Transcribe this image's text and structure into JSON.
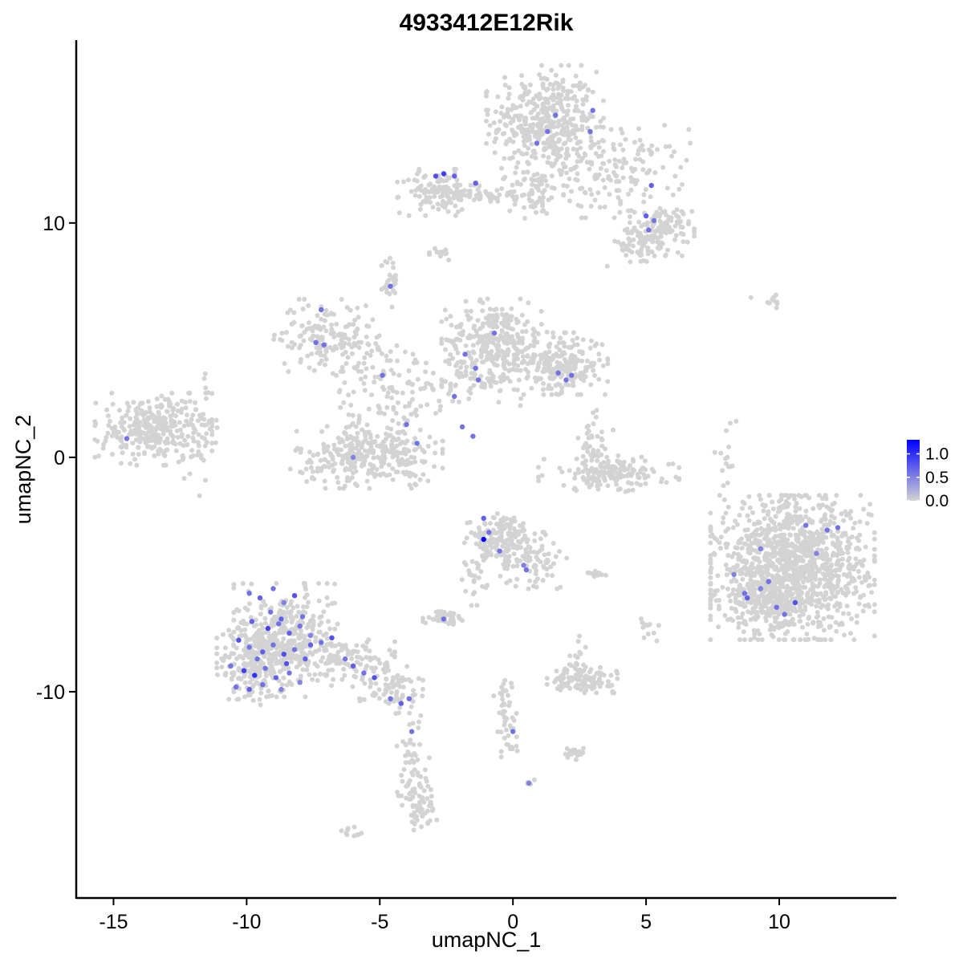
{
  "chart_data": {
    "type": "scatter",
    "title": "4933412E12Rik",
    "xlabel": "umapNC_1",
    "ylabel": "umapNC_2",
    "xlim": [
      -16.4,
      14.4
    ],
    "ylim": [
      -18.8,
      17.8
    ],
    "x_ticks": [
      -15,
      -10,
      -5,
      0,
      5,
      10
    ],
    "x_tick_labels": [
      "-15",
      "-10",
      "-5",
      "0",
      "5",
      "10"
    ],
    "y_ticks": [
      -10,
      0,
      10
    ],
    "y_tick_labels": [
      "-10",
      "0",
      "10"
    ],
    "grid": false,
    "legend_position": "right",
    "legend": {
      "low_color": "#d3d3d3",
      "high_color": "#0000ff",
      "range": [
        0,
        1.3
      ],
      "ticks": [
        0.0,
        0.5,
        1.0
      ],
      "tick_labels": [
        "0.0",
        "0.5",
        "1.0"
      ]
    },
    "clusters": [
      {
        "cx": 1.2,
        "cy": 14.3,
        "sx": 1.0,
        "sy": 1.1,
        "n": 420
      },
      {
        "cx": 3.8,
        "cy": 12.2,
        "sx": 1.3,
        "sy": 0.9,
        "n": 170
      },
      {
        "cx": 5.6,
        "cy": 9.7,
        "sx": 0.55,
        "sy": 0.5,
        "n": 110
      },
      {
        "cx": 4.6,
        "cy": 9.0,
        "sx": 0.6,
        "sy": 0.4,
        "n": 50
      },
      {
        "cx": -2.8,
        "cy": 11.3,
        "sx": 0.7,
        "sy": 0.45,
        "n": 120
      },
      {
        "cx": -0.7,
        "cy": 11.2,
        "sx": 0.6,
        "sy": 0.2,
        "n": 40
      },
      {
        "cx": 0.8,
        "cy": 11.3,
        "sx": 0.5,
        "sy": 0.5,
        "n": 60
      },
      {
        "cx": -2.7,
        "cy": 8.7,
        "sx": 0.2,
        "sy": 0.15,
        "n": 15
      },
      {
        "cx": -4.6,
        "cy": 7.5,
        "sx": 0.15,
        "sy": 0.6,
        "n": 25
      },
      {
        "cx": -0.7,
        "cy": 5.0,
        "sx": 0.9,
        "sy": 0.8,
        "n": 280
      },
      {
        "cx": 1.8,
        "cy": 4.0,
        "sx": 0.8,
        "sy": 0.6,
        "n": 230
      },
      {
        "cx": -1.5,
        "cy": 3.2,
        "sx": 1.2,
        "sy": 0.6,
        "n": 80
      },
      {
        "cx": -7.0,
        "cy": 5.2,
        "sx": 0.9,
        "sy": 0.7,
        "n": 150
      },
      {
        "cx": -5.2,
        "cy": 3.8,
        "sx": 1.0,
        "sy": 0.6,
        "n": 60
      },
      {
        "cx": -4.5,
        "cy": 2.5,
        "sx": 0.8,
        "sy": 0.8,
        "n": 30
      },
      {
        "cx": -5.5,
        "cy": 0.0,
        "sx": 1.3,
        "sy": 0.6,
        "n": 260
      },
      {
        "cx": -6.0,
        "cy": 0.9,
        "sx": 0.4,
        "sy": 0.8,
        "n": 40
      },
      {
        "cx": -4.1,
        "cy": 0.8,
        "sx": 0.4,
        "sy": 0.9,
        "n": 50
      },
      {
        "cx": -13.5,
        "cy": 1.2,
        "sx": 1.0,
        "sy": 0.7,
        "n": 300
      },
      {
        "cx": -11.8,
        "cy": 1.0,
        "sx": 0.4,
        "sy": 1.2,
        "n": 40
      },
      {
        "cx": 3.6,
        "cy": -0.7,
        "sx": 1.2,
        "sy": 0.35,
        "n": 170
      },
      {
        "cx": 3.1,
        "cy": 0.8,
        "sx": 0.3,
        "sy": 0.7,
        "n": 35
      },
      {
        "cx": 8.0,
        "cy": 0.0,
        "sx": 0.2,
        "sy": 0.7,
        "n": 15
      },
      {
        "cx": 10.5,
        "cy": -4.7,
        "sx": 1.4,
        "sy": 1.4,
        "n": 1200
      },
      {
        "cx": 9.5,
        "cy": -6.2,
        "sx": 0.8,
        "sy": 0.4,
        "n": 150
      },
      {
        "cx": -0.5,
        "cy": -3.5,
        "sx": 0.6,
        "sy": 0.5,
        "n": 160
      },
      {
        "cx": 0.7,
        "cy": -4.4,
        "sx": 0.6,
        "sy": 0.55,
        "n": 80
      },
      {
        "cx": -1.3,
        "cy": -5.0,
        "sx": 0.3,
        "sy": 0.6,
        "n": 25
      },
      {
        "cx": -2.5,
        "cy": -6.8,
        "sx": 0.4,
        "sy": 0.15,
        "n": 45
      },
      {
        "cx": 2.6,
        "cy": -9.5,
        "sx": 0.6,
        "sy": 0.25,
        "n": 120
      },
      {
        "cx": 2.3,
        "cy": -8.5,
        "sx": 0.2,
        "sy": 0.4,
        "n": 15
      },
      {
        "cx": -8.5,
        "cy": -7.8,
        "sx": 0.9,
        "sy": 1.1,
        "n": 400
      },
      {
        "cx": -9.8,
        "cy": -8.8,
        "sx": 0.6,
        "sy": 0.8,
        "n": 180
      },
      {
        "cx": -6.2,
        "cy": -8.6,
        "sx": 0.8,
        "sy": 0.4,
        "n": 90
      },
      {
        "cx": -4.7,
        "cy": -9.8,
        "sx": 0.6,
        "sy": 0.4,
        "n": 80
      },
      {
        "cx": -3.8,
        "cy": -12.8,
        "sx": 0.3,
        "sy": 1.3,
        "n": 60
      },
      {
        "cx": -3.5,
        "cy": -14.8,
        "sx": 0.3,
        "sy": 0.5,
        "n": 50
      },
      {
        "cx": -0.3,
        "cy": -10.8,
        "sx": 0.2,
        "sy": 0.9,
        "n": 40
      },
      {
        "cx": -0.1,
        "cy": -12.0,
        "sx": 0.15,
        "sy": 0.3,
        "n": 10
      },
      {
        "cx": 2.3,
        "cy": -12.6,
        "sx": 0.2,
        "sy": 0.15,
        "n": 25
      },
      {
        "cx": 3.1,
        "cy": -5.0,
        "sx": 0.25,
        "sy": 0.1,
        "n": 12
      },
      {
        "cx": 5.1,
        "cy": -7.3,
        "sx": 0.2,
        "sy": 0.3,
        "n": 12
      },
      {
        "cx": 9.6,
        "cy": 6.7,
        "sx": 0.3,
        "sy": 0.15,
        "n": 10
      },
      {
        "cx": -6.0,
        "cy": -16.0,
        "sx": 0.2,
        "sy": 0.15,
        "n": 10
      },
      {
        "cx": 0.6,
        "cy": -13.9,
        "sx": 0.15,
        "sy": 0.1,
        "n": 5
      }
    ],
    "expressed_points": [
      {
        "x": -9.9,
        "y": -5.8,
        "v": 0.6
      },
      {
        "x": -9.5,
        "y": -6.0,
        "v": 0.7
      },
      {
        "x": -9.0,
        "y": -5.6,
        "v": 0.6
      },
      {
        "x": -8.6,
        "y": -6.2,
        "v": 0.5
      },
      {
        "x": -8.2,
        "y": -5.9,
        "v": 0.8
      },
      {
        "x": -7.9,
        "y": -6.8,
        "v": 0.6
      },
      {
        "x": -9.8,
        "y": -7.0,
        "v": 0.7
      },
      {
        "x": -9.2,
        "y": -7.3,
        "v": 0.9
      },
      {
        "x": -8.8,
        "y": -7.1,
        "v": 0.6
      },
      {
        "x": -8.4,
        "y": -7.5,
        "v": 0.7
      },
      {
        "x": -8.0,
        "y": -7.2,
        "v": 0.6
      },
      {
        "x": -7.6,
        "y": -7.6,
        "v": 0.5
      },
      {
        "x": -10.3,
        "y": -7.8,
        "v": 0.8
      },
      {
        "x": -9.9,
        "y": -8.1,
        "v": 0.6
      },
      {
        "x": -9.4,
        "y": -8.3,
        "v": 0.7
      },
      {
        "x": -9.0,
        "y": -8.0,
        "v": 0.6
      },
      {
        "x": -8.6,
        "y": -8.4,
        "v": 0.8
      },
      {
        "x": -8.2,
        "y": -8.2,
        "v": 0.6
      },
      {
        "x": -7.8,
        "y": -8.6,
        "v": 0.7
      },
      {
        "x": -10.6,
        "y": -8.9,
        "v": 0.6
      },
      {
        "x": -10.1,
        "y": -9.1,
        "v": 0.9
      },
      {
        "x": -9.7,
        "y": -9.3,
        "v": 1.0
      },
      {
        "x": -9.3,
        "y": -9.0,
        "v": 0.6
      },
      {
        "x": -8.9,
        "y": -9.4,
        "v": 0.7
      },
      {
        "x": -8.4,
        "y": -9.2,
        "v": 0.6
      },
      {
        "x": -8.0,
        "y": -9.6,
        "v": 0.5
      },
      {
        "x": -10.4,
        "y": -9.8,
        "v": 0.6
      },
      {
        "x": -9.9,
        "y": -9.9,
        "v": 0.7
      },
      {
        "x": -9.4,
        "y": -9.7,
        "v": 0.6
      },
      {
        "x": -8.7,
        "y": -9.9,
        "v": 0.5
      },
      {
        "x": -7.6,
        "y": -8.0,
        "v": 0.7
      },
      {
        "x": -7.2,
        "y": -7.9,
        "v": 0.6
      },
      {
        "x": -6.8,
        "y": -7.7,
        "v": 0.8
      },
      {
        "x": -6.3,
        "y": -8.6,
        "v": 0.6
      },
      {
        "x": -6.0,
        "y": -8.9,
        "v": 0.7
      },
      {
        "x": -5.6,
        "y": -9.2,
        "v": 0.6
      },
      {
        "x": -5.2,
        "y": -9.4,
        "v": 0.8
      },
      {
        "x": -4.6,
        "y": -10.3,
        "v": 0.6
      },
      {
        "x": -4.2,
        "y": -10.5,
        "v": 0.7
      },
      {
        "x": -3.9,
        "y": -10.3,
        "v": 0.6
      },
      {
        "x": -3.8,
        "y": -11.7,
        "v": 0.6
      },
      {
        "x": -9.1,
        "y": -6.6,
        "v": 0.6
      },
      {
        "x": -8.7,
        "y": -6.9,
        "v": 0.7
      },
      {
        "x": -9.6,
        "y": -8.6,
        "v": 0.6
      },
      {
        "x": -8.5,
        "y": -8.8,
        "v": 0.8
      },
      {
        "x": -1.1,
        "y": -3.5,
        "v": 1.3
      },
      {
        "x": -1.1,
        "y": -2.6,
        "v": 0.7
      },
      {
        "x": -0.9,
        "y": -3.2,
        "v": 0.6
      },
      {
        "x": -0.5,
        "y": -4.0,
        "v": 0.6
      },
      {
        "x": 0.4,
        "y": -4.6,
        "v": 0.5
      },
      {
        "x": 0.5,
        "y": -4.8,
        "v": 0.6
      },
      {
        "x": -2.6,
        "y": -6.9,
        "v": 0.6
      },
      {
        "x": 0.0,
        "y": -11.7,
        "v": 0.6
      },
      {
        "x": 0.6,
        "y": -13.9,
        "v": 0.5
      },
      {
        "x": 9.6,
        "y": -5.3,
        "v": 0.6
      },
      {
        "x": 9.3,
        "y": -5.6,
        "v": 0.5
      },
      {
        "x": 8.7,
        "y": -5.8,
        "v": 0.6
      },
      {
        "x": 8.8,
        "y": -6.0,
        "v": 0.7
      },
      {
        "x": 9.9,
        "y": -6.4,
        "v": 0.6
      },
      {
        "x": 10.6,
        "y": -6.2,
        "v": 0.8
      },
      {
        "x": 10.2,
        "y": -6.7,
        "v": 0.6
      },
      {
        "x": 11.4,
        "y": -4.1,
        "v": 0.5
      },
      {
        "x": 11.0,
        "y": -2.9,
        "v": 0.6
      },
      {
        "x": 11.8,
        "y": -3.1,
        "v": 0.6
      },
      {
        "x": 12.2,
        "y": -3.0,
        "v": 0.6
      },
      {
        "x": 9.3,
        "y": -3.9,
        "v": 0.5
      },
      {
        "x": 8.3,
        "y": -5.0,
        "v": 0.5
      },
      {
        "x": -2.9,
        "y": 12.0,
        "v": 0.8
      },
      {
        "x": -2.6,
        "y": 12.1,
        "v": 0.9
      },
      {
        "x": -2.2,
        "y": 12.0,
        "v": 0.7
      },
      {
        "x": -1.4,
        "y": 11.7,
        "v": 0.7
      },
      {
        "x": 0.9,
        "y": 13.4,
        "v": 0.6
      },
      {
        "x": 1.3,
        "y": 13.9,
        "v": 0.6
      },
      {
        "x": 1.6,
        "y": 14.6,
        "v": 0.6
      },
      {
        "x": 3.0,
        "y": 14.8,
        "v": 0.6
      },
      {
        "x": 2.9,
        "y": 13.9,
        "v": 0.6
      },
      {
        "x": 5.2,
        "y": 11.6,
        "v": 0.7
      },
      {
        "x": 5.0,
        "y": 10.3,
        "v": 0.7
      },
      {
        "x": 5.3,
        "y": 10.1,
        "v": 0.6
      },
      {
        "x": 5.1,
        "y": 9.7,
        "v": 0.6
      },
      {
        "x": -4.6,
        "y": 7.3,
        "v": 0.6
      },
      {
        "x": -7.2,
        "y": 6.3,
        "v": 0.6
      },
      {
        "x": -7.4,
        "y": 4.9,
        "v": 0.6
      },
      {
        "x": -7.1,
        "y": 4.8,
        "v": 0.6
      },
      {
        "x": -4.9,
        "y": 3.5,
        "v": 0.6
      },
      {
        "x": -1.8,
        "y": 4.4,
        "v": 0.6
      },
      {
        "x": -1.4,
        "y": 3.8,
        "v": 0.6
      },
      {
        "x": -1.3,
        "y": 3.3,
        "v": 0.6
      },
      {
        "x": -0.7,
        "y": 5.3,
        "v": 0.6
      },
      {
        "x": 1.7,
        "y": 3.6,
        "v": 0.6
      },
      {
        "x": 2.0,
        "y": 3.3,
        "v": 0.6
      },
      {
        "x": 2.2,
        "y": 3.5,
        "v": 0.6
      },
      {
        "x": -2.2,
        "y": 2.6,
        "v": 0.6
      },
      {
        "x": -4.0,
        "y": 1.4,
        "v": 0.6
      },
      {
        "x": -1.9,
        "y": 1.3,
        "v": 0.6
      },
      {
        "x": -1.5,
        "y": 0.9,
        "v": 0.6
      },
      {
        "x": -3.6,
        "y": 0.6,
        "v": 0.6
      },
      {
        "x": -6.0,
        "y": 0.0,
        "v": 0.5
      },
      {
        "x": -14.5,
        "y": 0.8,
        "v": 0.6
      }
    ]
  }
}
